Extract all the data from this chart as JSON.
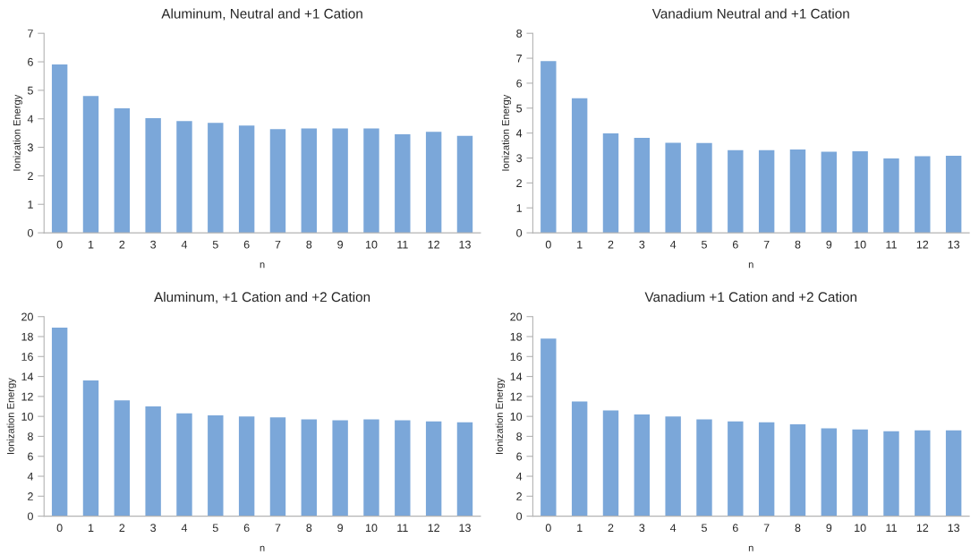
{
  "chart_data": [
    {
      "type": "bar",
      "title": "Aluminum, Neutral and +1 Cation",
      "xlabel": "n",
      "ylabel": "Ionization Energy",
      "categories": [
        "0",
        "1",
        "2",
        "3",
        "4",
        "5",
        "6",
        "7",
        "8",
        "9",
        "10",
        "11",
        "12",
        "13"
      ],
      "color": "#7ba7d9",
      "values": [
        5.91,
        4.8,
        4.37,
        4.02,
        3.92,
        3.86,
        3.76,
        3.64,
        3.66,
        3.66,
        3.66,
        3.46,
        3.54,
        3.4
      ],
      "ylim": [
        0,
        7
      ],
      "yticks": [
        0,
        1,
        2,
        3,
        4,
        5,
        6,
        7
      ],
      "grid": false
    },
    {
      "type": "bar",
      "title": "Vanadium Neutral and +1 Cation",
      "xlabel": "n",
      "ylabel": "Ionization Energy",
      "categories": [
        "0",
        "1",
        "2",
        "3",
        "4",
        "5",
        "6",
        "7",
        "8",
        "9",
        "10",
        "11",
        "12",
        "13"
      ],
      "color": "#7ba7d9",
      "values": [
        6.89,
        5.4,
        3.99,
        3.81,
        3.61,
        3.6,
        3.31,
        3.31,
        3.34,
        3.25,
        3.27,
        2.98,
        3.07,
        3.09
      ],
      "ylim": [
        0,
        8
      ],
      "yticks": [
        0,
        1,
        2,
        3,
        4,
        5,
        6,
        7,
        8
      ],
      "grid": false
    },
    {
      "type": "bar",
      "title": "Aluminum, +1 Cation and +2 Cation",
      "xlabel": "n",
      "ylabel": "Ionization Energy",
      "categories": [
        "0",
        "1",
        "2",
        "3",
        "4",
        "5",
        "6",
        "7",
        "8",
        "9",
        "10",
        "11",
        "12",
        "13"
      ],
      "color": "#7ba7d9",
      "values": [
        18.9,
        13.6,
        11.6,
        11.0,
        10.3,
        10.1,
        10.0,
        9.9,
        9.7,
        9.6,
        9.7,
        9.6,
        9.5,
        9.4
      ],
      "ylim": [
        0,
        20
      ],
      "yticks": [
        0,
        2,
        4,
        6,
        8,
        10,
        12,
        14,
        16,
        18,
        20
      ],
      "grid": false
    },
    {
      "type": "bar",
      "title": "Vanadium +1 Cation and +2 Cation",
      "xlabel": "n",
      "ylabel": "Ionization Energy",
      "categories": [
        "0",
        "1",
        "2",
        "3",
        "4",
        "5",
        "6",
        "7",
        "8",
        "9",
        "10",
        "11",
        "12",
        "13"
      ],
      "color": "#7ba7d9",
      "values": [
        17.8,
        11.5,
        10.6,
        10.2,
        10.0,
        9.7,
        9.5,
        9.4,
        9.2,
        8.8,
        8.7,
        8.5,
        8.6,
        8.6
      ],
      "ylim": [
        0,
        20
      ],
      "yticks": [
        0,
        2,
        4,
        6,
        8,
        10,
        12,
        14,
        16,
        18,
        20
      ],
      "grid": false
    }
  ]
}
